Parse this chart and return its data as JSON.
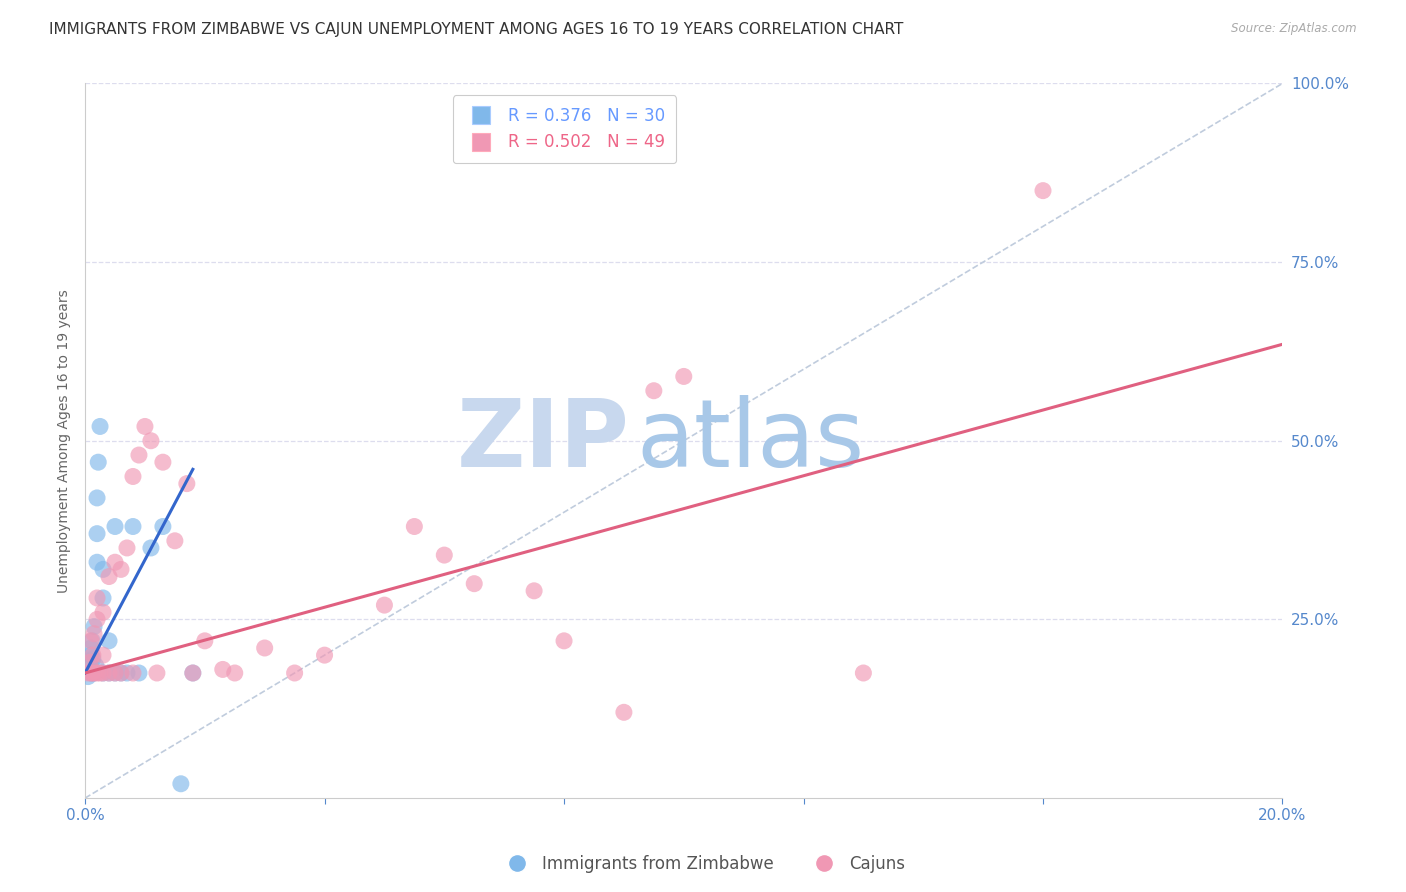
{
  "title": "IMMIGRANTS FROM ZIMBABWE VS CAJUN UNEMPLOYMENT AMONG AGES 16 TO 19 YEARS CORRELATION CHART",
  "source": "Source: ZipAtlas.com",
  "ylabel": "Unemployment Among Ages 16 to 19 years",
  "xlim": [
    0.0,
    0.2
  ],
  "ylim": [
    0.0,
    1.0
  ],
  "xticks": [
    0.0,
    0.04,
    0.08,
    0.12,
    0.16,
    0.2
  ],
  "yticks_right": [
    0.0,
    0.25,
    0.5,
    0.75,
    1.0
  ],
  "legend_entries": [
    {
      "label": "R = 0.376   N = 30",
      "color": "#6699ff"
    },
    {
      "label": "R = 0.502   N = 49",
      "color": "#ee6688"
    }
  ],
  "watermark_zip": "ZIP",
  "watermark_atlas": "atlas",
  "watermark_color_zip": "#c8d8ee",
  "watermark_color_atlas": "#a8c8e8",
  "scatter_blue": {
    "x": [
      0.0005,
      0.0008,
      0.001,
      0.001,
      0.001,
      0.0012,
      0.0013,
      0.0015,
      0.0015,
      0.0018,
      0.002,
      0.002,
      0.002,
      0.0022,
      0.0025,
      0.003,
      0.003,
      0.003,
      0.004,
      0.004,
      0.005,
      0.005,
      0.006,
      0.007,
      0.008,
      0.009,
      0.011,
      0.013,
      0.016,
      0.018
    ],
    "y": [
      0.17,
      0.19,
      0.175,
      0.2,
      0.21,
      0.22,
      0.195,
      0.24,
      0.175,
      0.185,
      0.33,
      0.37,
      0.42,
      0.47,
      0.52,
      0.28,
      0.32,
      0.175,
      0.22,
      0.175,
      0.38,
      0.175,
      0.175,
      0.175,
      0.38,
      0.175,
      0.35,
      0.38,
      0.02,
      0.175
    ]
  },
  "scatter_pink": {
    "x": [
      0.0005,
      0.0008,
      0.001,
      0.001,
      0.0012,
      0.0013,
      0.0015,
      0.0015,
      0.002,
      0.002,
      0.002,
      0.0025,
      0.003,
      0.003,
      0.003,
      0.004,
      0.004,
      0.005,
      0.005,
      0.006,
      0.006,
      0.007,
      0.008,
      0.008,
      0.009,
      0.01,
      0.011,
      0.012,
      0.013,
      0.015,
      0.017,
      0.018,
      0.02,
      0.023,
      0.025,
      0.03,
      0.035,
      0.04,
      0.05,
      0.055,
      0.06,
      0.065,
      0.075,
      0.08,
      0.09,
      0.095,
      0.1,
      0.13,
      0.16
    ],
    "y": [
      0.175,
      0.19,
      0.22,
      0.175,
      0.175,
      0.2,
      0.23,
      0.175,
      0.25,
      0.175,
      0.28,
      0.175,
      0.26,
      0.175,
      0.2,
      0.31,
      0.175,
      0.33,
      0.175,
      0.32,
      0.175,
      0.35,
      0.45,
      0.175,
      0.48,
      0.52,
      0.5,
      0.175,
      0.47,
      0.36,
      0.44,
      0.175,
      0.22,
      0.18,
      0.175,
      0.21,
      0.175,
      0.2,
      0.27,
      0.38,
      0.34,
      0.3,
      0.29,
      0.22,
      0.12,
      0.57,
      0.59,
      0.175,
      0.85
    ]
  },
  "trend_blue": {
    "x": [
      0.0,
      0.018
    ],
    "y": [
      0.175,
      0.46
    ]
  },
  "trend_pink": {
    "x": [
      0.0,
      0.2
    ],
    "y": [
      0.175,
      0.635
    ]
  },
  "ref_line": {
    "x": [
      0.0,
      0.2
    ],
    "y": [
      0.0,
      1.0
    ]
  },
  "blue_color": "#80b8ea",
  "pink_color": "#f098b4",
  "trend_blue_color": "#3366cc",
  "trend_pink_color": "#e06080",
  "ref_line_color": "#c0ccdd",
  "bg_color": "#ffffff",
  "grid_color": "#ddddee",
  "axis_label_color": "#5588cc",
  "title_color": "#333333",
  "source_color": "#aaaaaa",
  "title_fontsize": 11,
  "axis_fontsize": 11,
  "legend_fontsize": 12
}
